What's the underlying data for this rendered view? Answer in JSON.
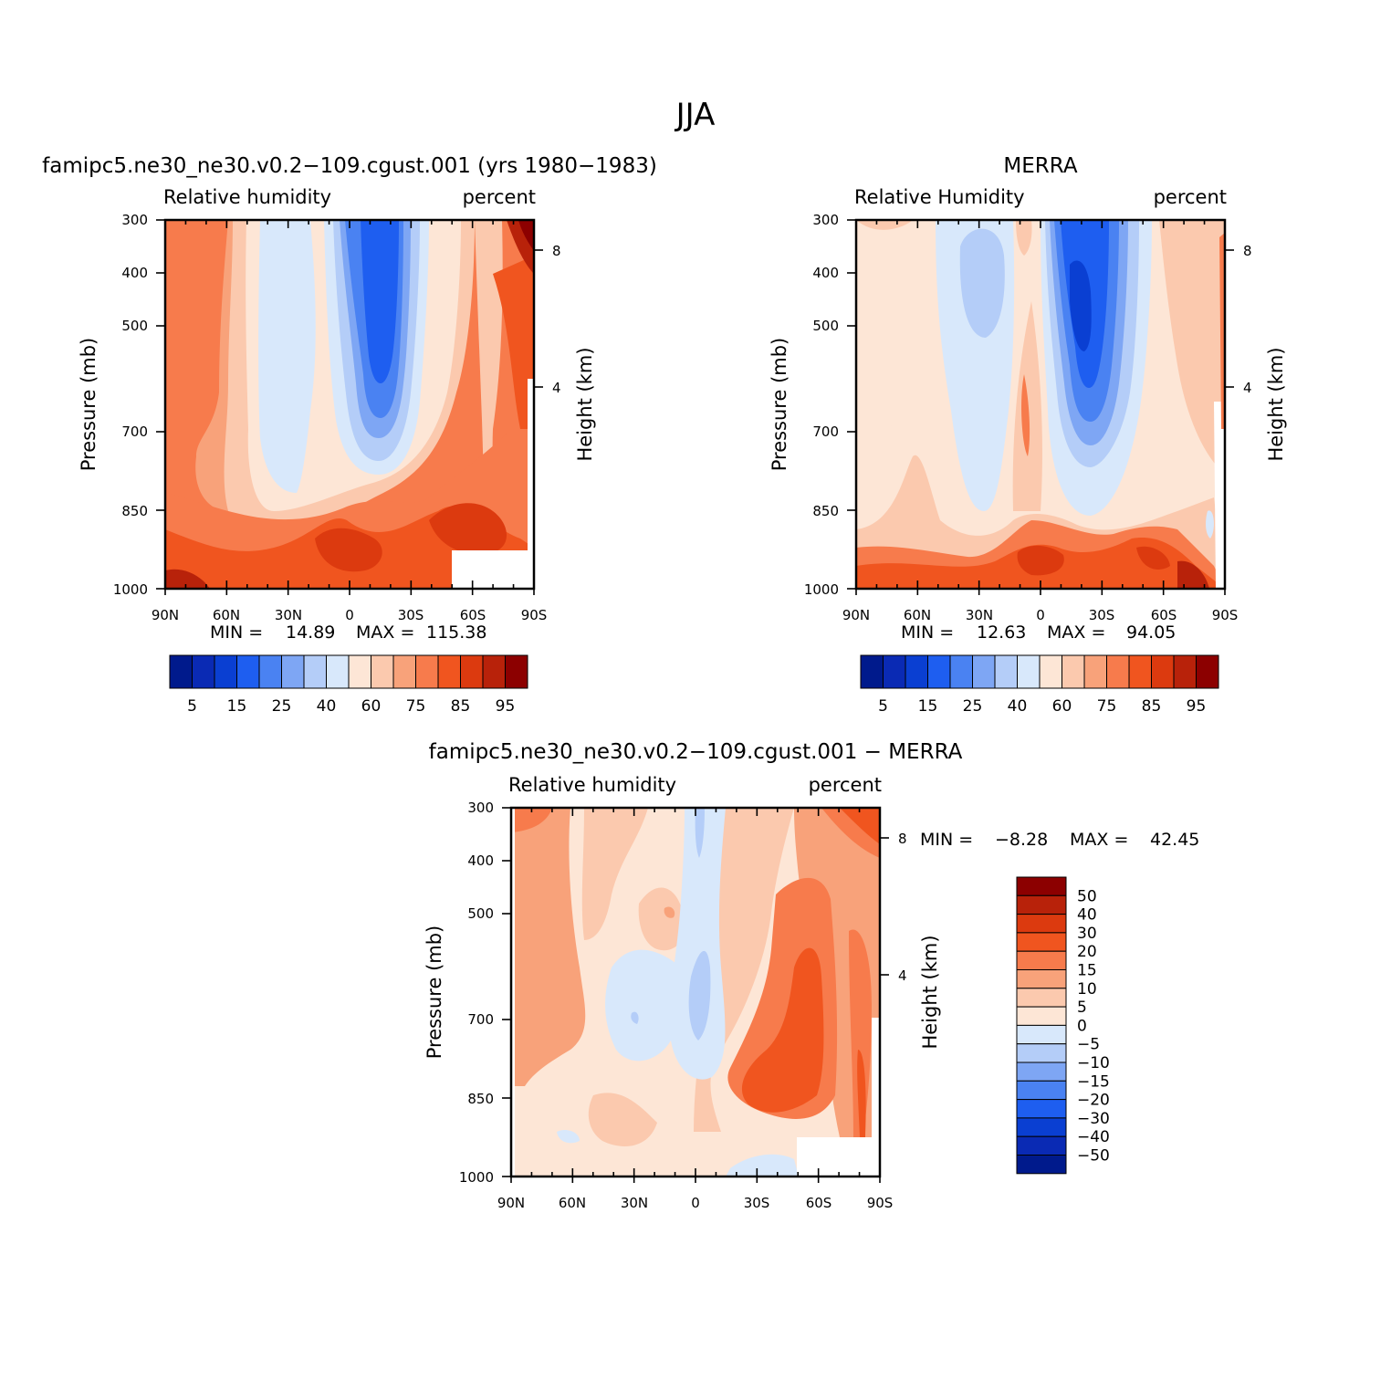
{
  "figure": {
    "title": "JJA"
  },
  "colors": {
    "rh_palette": [
      "#001a8c",
      "#0a2ab4",
      "#0a3fd2",
      "#1e5ef0",
      "#4a82f2",
      "#7ea6f4",
      "#b4cdf8",
      "#d8e8fb",
      "#fde6d6",
      "#fbc9ae",
      "#f8a27a",
      "#f77b4c",
      "#f0551f",
      "#dc3a0f",
      "#b8220a",
      "#8c0000"
    ],
    "diff_palette": [
      "#001a8c",
      "#0a2ab4",
      "#0a3fd2",
      "#1e5ef0",
      "#4a82f2",
      "#7ea6f4",
      "#b4cdf8",
      "#d8e8fb",
      "#fde6d6",
      "#fbc9ae",
      "#f8a27a",
      "#f77b4c",
      "#f0551f",
      "#dc3a0f",
      "#b8220a",
      "#8c0000"
    ]
  },
  "chart_data": [
    {
      "id": "model",
      "type": "heatmap",
      "title": "famipc5.ne30_ne30.v0.2−109.cgust.001 (yrs 1980−1983)",
      "variable": "Relative humidity",
      "units": "percent",
      "xlabel": "",
      "ylabel": "Pressure (mb)",
      "ylabel_right": "Height (km)",
      "x_ticks": [
        "90N",
        "60N",
        "30N",
        "0",
        "30S",
        "60S",
        "90S"
      ],
      "y_ticks": [
        "300",
        "400",
        "500",
        "700",
        "850",
        "1000"
      ],
      "y_right_ticks": [
        "8",
        "4"
      ],
      "min_label": "MIN =",
      "min_value": "14.89",
      "max_label": "MAX =",
      "max_value": "115.38",
      "colorbar_labels": [
        "5",
        "15",
        "25",
        "40",
        "60",
        "75",
        "85",
        "95"
      ]
    },
    {
      "id": "obs",
      "type": "heatmap",
      "title": "MERRA",
      "variable": "Relative Humidity",
      "units": "percent",
      "xlabel": "",
      "ylabel": "Pressure (mb)",
      "ylabel_right": "Height (km)",
      "x_ticks": [
        "90N",
        "60N",
        "30N",
        "0",
        "30S",
        "60S",
        "90S"
      ],
      "y_ticks": [
        "300",
        "400",
        "500",
        "700",
        "850",
        "1000"
      ],
      "y_right_ticks": [
        "8",
        "4"
      ],
      "min_label": "MIN =",
      "min_value": "12.63",
      "max_label": "MAX =",
      "max_value": "94.05",
      "colorbar_labels": [
        "5",
        "15",
        "25",
        "40",
        "60",
        "75",
        "85",
        "95"
      ]
    },
    {
      "id": "diff",
      "type": "heatmap",
      "title": "famipc5.ne30_ne30.v0.2−109.cgust.001 − MERRA",
      "variable": "Relative humidity",
      "units": "percent",
      "xlabel": "",
      "ylabel": "Pressure (mb)",
      "ylabel_right": "Height (km)",
      "x_ticks": [
        "90N",
        "60N",
        "30N",
        "0",
        "30S",
        "60S",
        "90S"
      ],
      "y_ticks": [
        "300",
        "400",
        "500",
        "700",
        "850",
        "1000"
      ],
      "y_right_ticks": [
        "8",
        "4"
      ],
      "min_label": "MIN =",
      "min_value": "−8.28",
      "max_label": "MAX =",
      "max_value": "42.45",
      "colorbar_labels": [
        "50",
        "40",
        "30",
        "20",
        "15",
        "10",
        "5",
        "0",
        "−5",
        "−10",
        "−15",
        "−20",
        "−30",
        "−40",
        "−50"
      ]
    }
  ]
}
